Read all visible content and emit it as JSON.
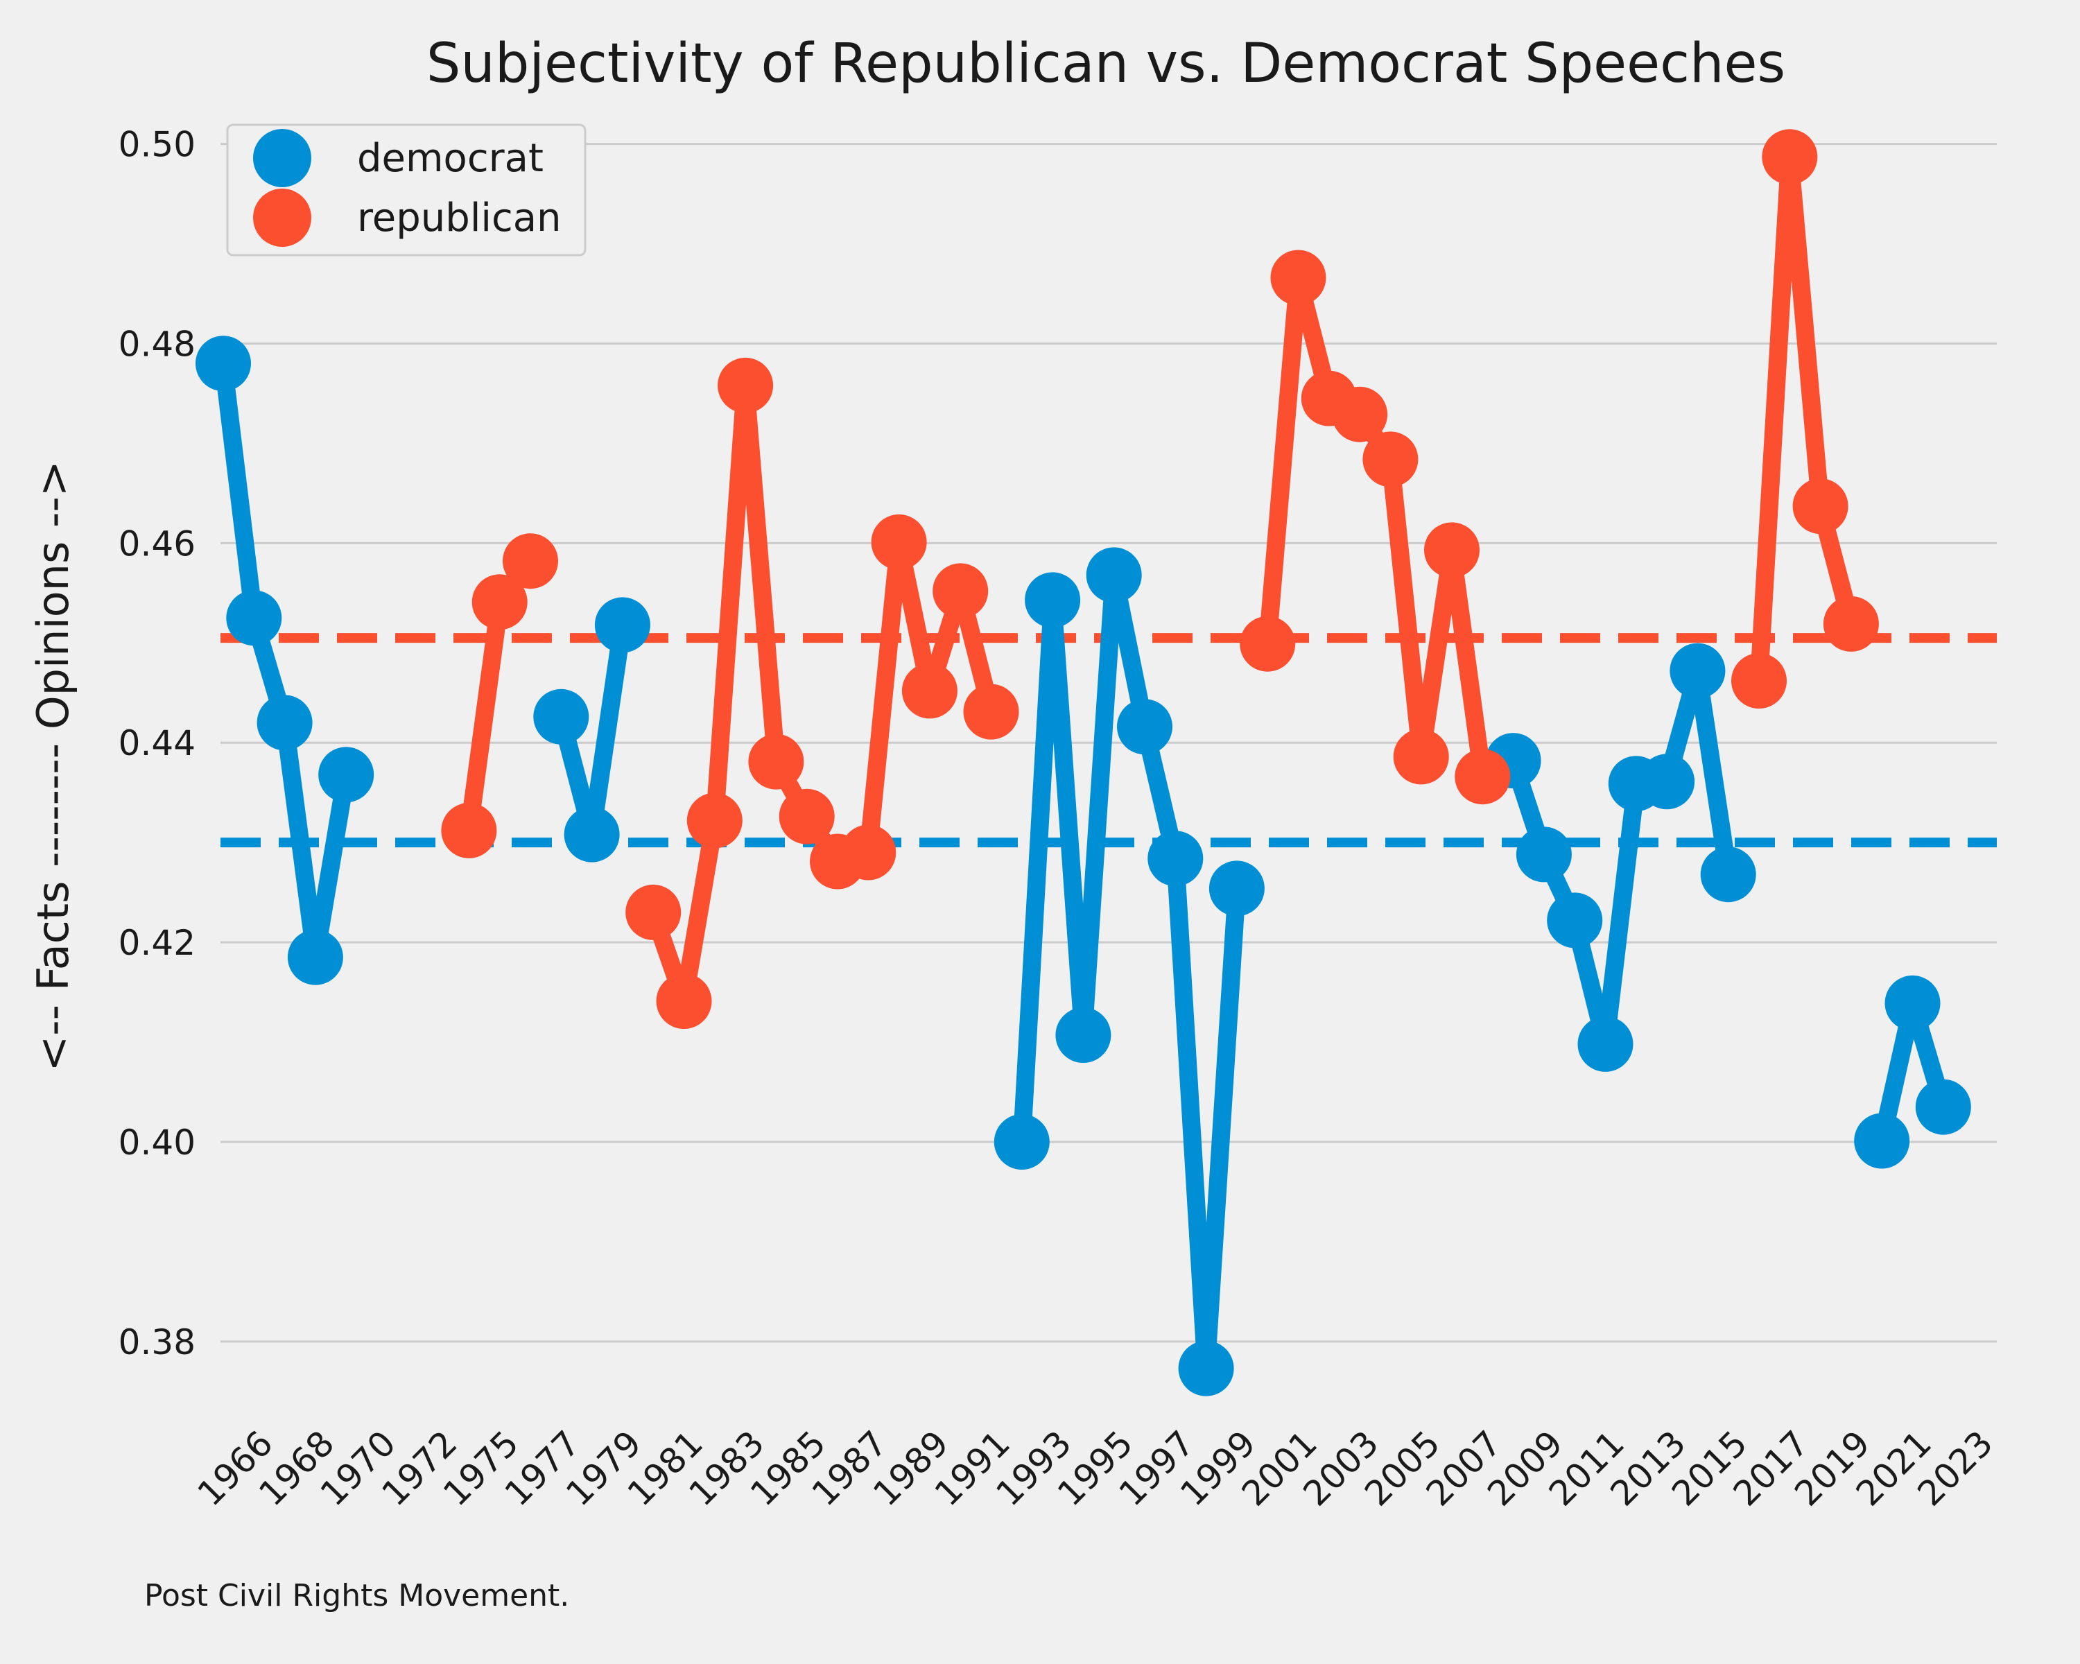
{
  "chart_data": {
    "type": "line",
    "title": "Subjectivity of Republican vs. Democrat Speeches",
    "ylabel": "<-- Facts -------- Opinions -->",
    "caption": "Post Civil Rights Movement.",
    "ylim": [
      0.372,
      0.504
    ],
    "yticks": [
      0.38,
      0.4,
      0.42,
      0.44,
      0.46,
      0.48,
      0.5
    ],
    "ytick_labels": [
      "0.38",
      "0.40",
      "0.42",
      "0.44",
      "0.46",
      "0.48",
      "0.50"
    ],
    "grid": "horizontal",
    "legend_position": "top-left",
    "x_categories": [
      "1965",
      "1966",
      "1967",
      "1968",
      "1969",
      "1970",
      "1971",
      "1972",
      "1974",
      "1975",
      "1976",
      "1977",
      "1978",
      "1979",
      "1980",
      "1981",
      "1982",
      "1983",
      "1984",
      "1985",
      "1986",
      "1987",
      "1988",
      "1989",
      "1990",
      "1991",
      "1992",
      "1993",
      "1994",
      "1995",
      "1996",
      "1997",
      "1998",
      "1999",
      "2000",
      "2001",
      "2002",
      "2003",
      "2004",
      "2005",
      "2006",
      "2007",
      "2008",
      "2009",
      "2010",
      "2011",
      "2012",
      "2013",
      "2014",
      "2015",
      "2016",
      "2017",
      "2018",
      "2019",
      "2020",
      "2021",
      "2022",
      "2023"
    ],
    "xtick_labels": [
      "1966",
      "1968",
      "1970",
      "1972",
      "1975",
      "1977",
      "1979",
      "1981",
      "1983",
      "1985",
      "1987",
      "1989",
      "1991",
      "1993",
      "1995",
      "1997",
      "1999",
      "2001",
      "2003",
      "2005",
      "2007",
      "2009",
      "2011",
      "2013",
      "2015",
      "2017",
      "2019",
      "2021",
      "2023"
    ],
    "series": [
      {
        "name": "democrat",
        "color": "#008fd5",
        "mean": 0.43,
        "points": [
          [
            "1965",
            0.478
          ],
          [
            "1966",
            0.4525
          ],
          [
            "1967",
            0.442
          ],
          [
            "1968",
            0.4185
          ],
          [
            "1969",
            0.4368
          ],
          [
            null,
            null
          ],
          [
            "1977",
            0.4426
          ],
          [
            "1978",
            0.4308
          ],
          [
            "1979",
            0.4518
          ],
          [
            null,
            null
          ],
          [
            "1992",
            0.4
          ],
          [
            "1993",
            0.4543
          ],
          [
            "1994",
            0.4107
          ],
          [
            "1995",
            0.4568
          ],
          [
            "1996",
            0.4416
          ],
          [
            "1997",
            0.4284
          ],
          [
            "1998",
            0.3773
          ],
          [
            "1999",
            0.4254
          ],
          [
            null,
            null
          ],
          [
            "2008",
            0.4382
          ],
          [
            "2009",
            0.4288
          ],
          [
            "2010",
            0.4222
          ],
          [
            "2011",
            0.4098
          ],
          [
            "2012",
            0.4359
          ],
          [
            "2013",
            0.4361
          ],
          [
            "2014",
            0.4472
          ],
          [
            "2015",
            0.4268
          ],
          [
            null,
            null
          ],
          [
            "2020",
            0.4001
          ],
          [
            "2021",
            0.4139
          ],
          [
            "2022",
            0.4035
          ]
        ]
      },
      {
        "name": "republican",
        "color": "#fc4f30",
        "mean": 0.4505,
        "points": [
          [
            "1974",
            0.4312
          ],
          [
            "1975",
            0.4541
          ],
          [
            "1976",
            0.4582
          ],
          [
            null,
            null
          ],
          [
            "1980",
            0.423
          ],
          [
            "1981",
            0.4141
          ],
          [
            "1982",
            0.4322
          ],
          [
            "1983",
            0.4758
          ],
          [
            "1984",
            0.4381
          ],
          [
            "1985",
            0.4326
          ],
          [
            "1986",
            0.4281
          ],
          [
            "1987",
            0.429
          ],
          [
            "1988",
            0.4601
          ],
          [
            "1989",
            0.4452
          ],
          [
            "1990",
            0.4552
          ],
          [
            "1991",
            0.4431
          ],
          [
            null,
            null
          ],
          [
            "2000",
            0.4499
          ],
          [
            "2001",
            0.4866
          ],
          [
            "2002",
            0.4745
          ],
          [
            "2003",
            0.4729
          ],
          [
            "2004",
            0.4684
          ],
          [
            "2005",
            0.4386
          ],
          [
            "2006",
            0.4593
          ],
          [
            "2007",
            0.4366
          ],
          [
            null,
            null
          ],
          [
            "2016",
            0.4462
          ],
          [
            "2017",
            0.4987
          ],
          [
            "2018",
            0.4637
          ],
          [
            "2019",
            0.4519
          ]
        ]
      }
    ]
  }
}
